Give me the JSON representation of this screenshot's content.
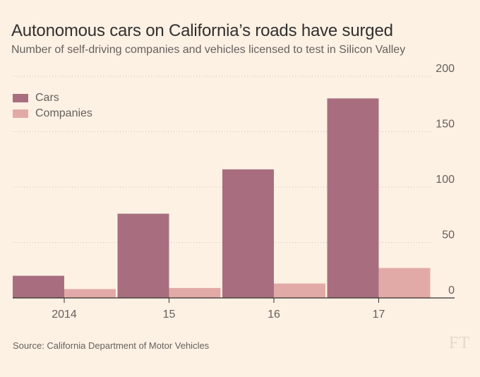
{
  "header": {
    "title": "Autonomous cars on California’s roads have surged",
    "subtitle": "Number of self-driving companies and vehicles licensed to test in Silicon Valley"
  },
  "footer": {
    "source": "Source: California Department of Motor Vehicles",
    "logo_text": "FT"
  },
  "colors": {
    "background": "#fdf1e4",
    "cars": "#a86e7f",
    "companies": "#e2aaa6"
  },
  "chart_data": {
    "type": "bar",
    "title": "Autonomous cars on California’s roads have surged",
    "subtitle": "Number of self-driving companies and vehicles licensed to test in Silicon Valley",
    "categories": [
      "2014",
      "15",
      "16",
      "17"
    ],
    "series": [
      {
        "name": "Cars",
        "values": [
          20,
          76,
          116,
          180
        ],
        "color": "#a86e7f"
      },
      {
        "name": "Companies",
        "values": [
          8,
          9,
          13,
          27
        ],
        "color": "#e2aaa6"
      }
    ],
    "y_ticks": [
      0,
      50,
      100,
      150,
      200
    ],
    "ylim": [
      0,
      200
    ],
    "y_axis_side": "right",
    "grid": "dotted horizontal",
    "legend": "top-left",
    "source": "Source: California Department of Motor Vehicles"
  }
}
